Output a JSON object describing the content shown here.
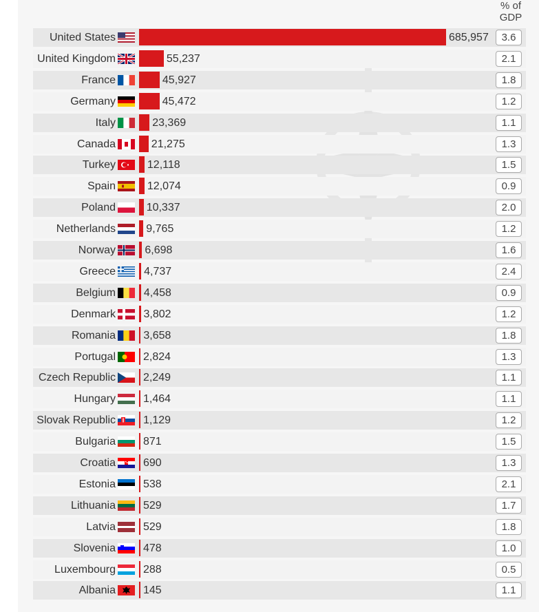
{
  "chart_data": {
    "type": "bar",
    "orientation": "horizontal",
    "title": "",
    "gdp_header": "% of GDP",
    "gdp_header_lines": [
      "% of",
      "GDP"
    ],
    "bar_color": "#d7191c",
    "categories": [
      "United States",
      "United Kingdom",
      "France",
      "Germany",
      "Italy",
      "Canada",
      "Turkey",
      "Spain",
      "Poland",
      "Netherlands",
      "Norway",
      "Greece",
      "Belgium",
      "Denmark",
      "Romania",
      "Portugal",
      "Czech Republic",
      "Hungary",
      "Slovak Republic",
      "Bulgaria",
      "Croatia",
      "Estonia",
      "Lithuania",
      "Latvia",
      "Slovenia",
      "Luxembourg",
      "Albania"
    ],
    "values": [
      685957,
      55237,
      45927,
      45472,
      23369,
      21275,
      12118,
      12074,
      10337,
      9765,
      6698,
      4737,
      4458,
      3802,
      3658,
      2824,
      2249,
      1464,
      1129,
      871,
      690,
      538,
      529,
      529,
      478,
      288,
      145
    ],
    "value_labels": [
      "685,957",
      "55,237",
      "45,927",
      "45,472",
      "23,369",
      "21,275",
      "12,118",
      "12,074",
      "10,337",
      "9,765",
      "6,698",
      "4,737",
      "4,458",
      "3,802",
      "3,658",
      "2,824",
      "2,249",
      "1,464",
      "1,129",
      "871",
      "690",
      "538",
      "529",
      "529",
      "478",
      "288",
      "145"
    ],
    "gdp_percent": [
      "3.6",
      "2.1",
      "1.8",
      "1.2",
      "1.1",
      "1.3",
      "1.5",
      "0.9",
      "2.0",
      "1.2",
      "1.6",
      "2.4",
      "0.9",
      "1.2",
      "1.8",
      "1.3",
      "1.1",
      "1.1",
      "1.2",
      "1.5",
      "1.3",
      "2.1",
      "1.7",
      "1.8",
      "1.0",
      "0.5",
      "1.1"
    ],
    "flags": [
      "us",
      "gb",
      "fr",
      "de",
      "it",
      "ca",
      "tr",
      "es",
      "pl",
      "nl",
      "no",
      "gr",
      "be",
      "dk",
      "ro",
      "pt",
      "cz",
      "hu",
      "sk",
      "bg",
      "hr",
      "ee",
      "lt",
      "lv",
      "si",
      "lu",
      "al"
    ]
  },
  "watermark_icon": "nato-compass-star-icon"
}
